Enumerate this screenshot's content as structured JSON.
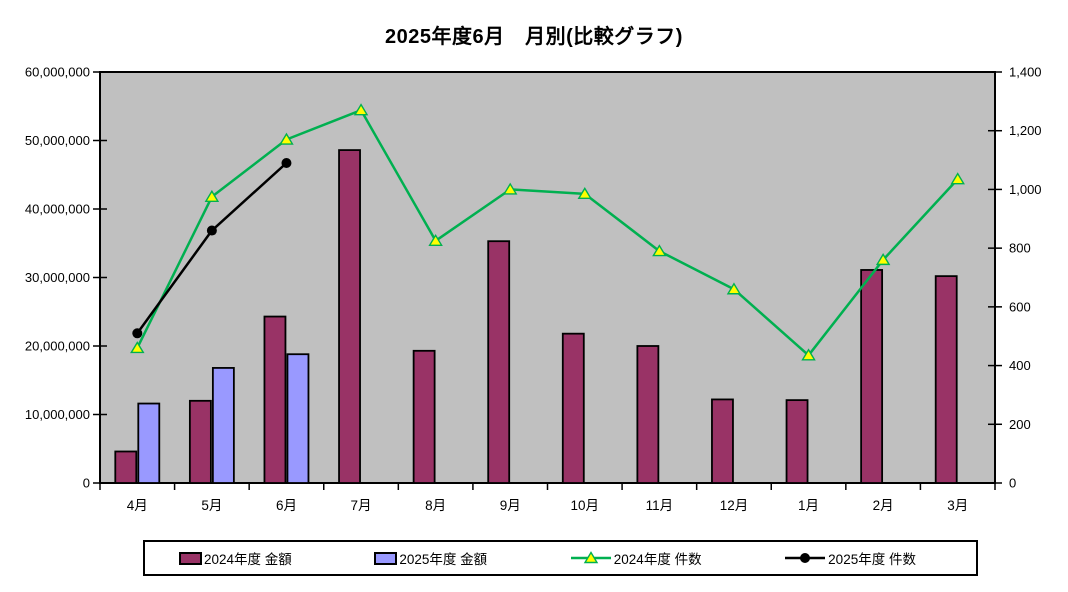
{
  "title": "2025年度6月　月別(比較グラフ)",
  "chart_data": {
    "type": "combo-bar-line",
    "categories": [
      "4月",
      "5月",
      "6月",
      "7月",
      "8月",
      "9月",
      "10月",
      "11月",
      "12月",
      "1月",
      "2月",
      "3月"
    ],
    "series": [
      {
        "name": "2024年度 金額",
        "type": "bar",
        "axis": "left",
        "color": "#993366",
        "values": [
          4600000,
          12000000,
          24300000,
          48600000,
          19300000,
          35300000,
          21800000,
          20000000,
          12200000,
          12100000,
          31100000,
          30200000
        ]
      },
      {
        "name": "2025年度 金額",
        "type": "bar",
        "axis": "left",
        "color": "#9999FF",
        "values": [
          11600000,
          16800000,
          18800000,
          null,
          null,
          null,
          null,
          null,
          null,
          null,
          null,
          null
        ]
      },
      {
        "name": "2024年度 件数",
        "type": "line",
        "axis": "right",
        "color": "#00B050",
        "marker": "triangle",
        "marker_fill": "#FFFF00",
        "values": [
          460,
          975,
          1170,
          1270,
          825,
          1000,
          985,
          790,
          660,
          435,
          760,
          1035
        ]
      },
      {
        "name": "2025年度 件数",
        "type": "line",
        "axis": "right",
        "color": "#000000",
        "marker": "circle",
        "marker_fill": "#000000",
        "values": [
          510,
          860,
          1090,
          null,
          null,
          null,
          null,
          null,
          null,
          null,
          null,
          null
        ]
      }
    ],
    "left_axis": {
      "min": 0,
      "max": 60000000,
      "step": 10000000,
      "labels": [
        "0",
        "10,000,000",
        "20,000,000",
        "30,000,000",
        "40,000,000",
        "50,000,000",
        "60,000,000"
      ]
    },
    "right_axis": {
      "min": 0,
      "max": 1400,
      "step": 200,
      "labels": [
        "0",
        "200",
        "400",
        "600",
        "800",
        "1,000",
        "1,200",
        "1,400"
      ]
    },
    "plot_bg": "#C0C0C0",
    "page_bg": "#FFFFFF",
    "grid": "off",
    "legend_position": "bottom"
  }
}
